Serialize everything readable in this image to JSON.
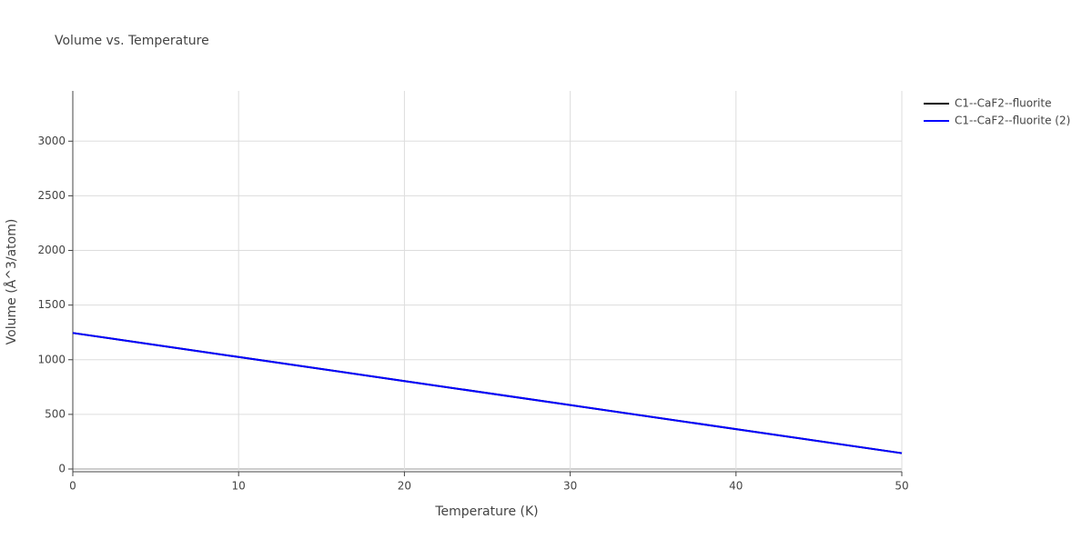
{
  "chart_data": {
    "type": "line",
    "title": "Volume vs. Temperature",
    "x_label": "Temperature (K)",
    "y_label": "Volume (Å^3/atom)",
    "x": [
      0,
      10,
      20,
      30,
      40,
      50
    ],
    "series": [
      {
        "name": "C1--CaF2--fluorite",
        "color": "#000000",
        "values": [
          1245,
          1025,
          805,
          585,
          365,
          145
        ]
      },
      {
        "name": "C1--CaF2--fluorite (2)",
        "color": "#0000ff",
        "values": [
          1245,
          1025,
          805,
          585,
          365,
          145
        ]
      }
    ],
    "xlim": [
      0,
      50
    ],
    "xticks": [
      0,
      10,
      20,
      30,
      40,
      50
    ],
    "ylim": [
      -25,
      3460
    ],
    "yticks": [
      0,
      500,
      1000,
      1500,
      2000,
      2500,
      3000
    ],
    "grid": true,
    "legend": "top-right"
  }
}
